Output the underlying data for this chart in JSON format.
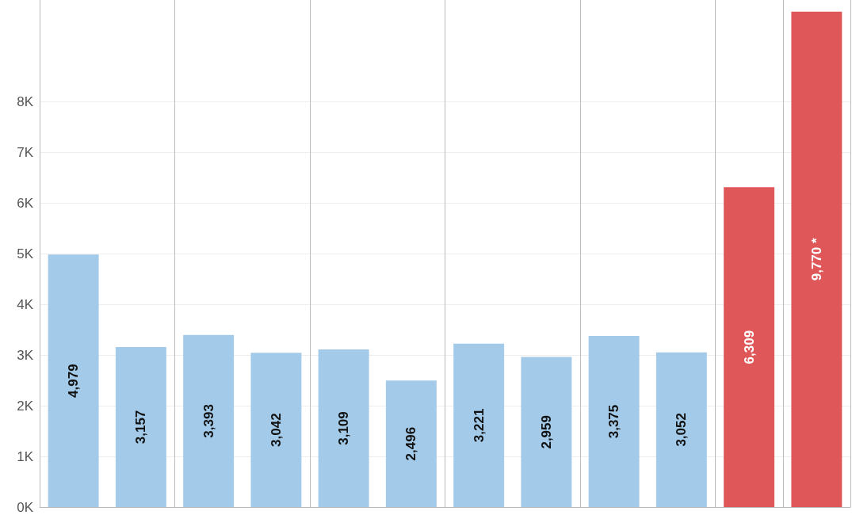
{
  "chart_data": {
    "type": "bar",
    "categories": [
      null,
      null,
      null,
      null,
      null,
      null,
      null,
      null,
      null,
      null,
      null,
      null
    ],
    "values": [
      4979,
      3157,
      3393,
      3042,
      3109,
      2496,
      3221,
      2959,
      3375,
      3052,
      6309,
      9770
    ],
    "colors": [
      "#a3cbe9",
      "#a3cbe9",
      "#a3cbe9",
      "#a3cbe9",
      "#a3cbe9",
      "#a3cbe9",
      "#a3cbe9",
      "#a3cbe9",
      "#a3cbe9",
      "#a3cbe9",
      "#e05759",
      "#e05759"
    ],
    "value_labels": [
      "4,979",
      "3,157",
      "3,393",
      "3,042",
      "3,109",
      "2,496",
      "3,221",
      "2,959",
      "3,375",
      "3,052",
      "6,309",
      "9,770 *"
    ],
    "ylim": [
      0,
      10000
    ],
    "yticks": [
      {
        "value": 0,
        "label": "0K"
      },
      {
        "value": 1000,
        "label": "1K"
      },
      {
        "value": 2000,
        "label": "2K"
      },
      {
        "value": 3000,
        "label": "3K"
      },
      {
        "value": 4000,
        "label": "4K"
      },
      {
        "value": 5000,
        "label": "5K"
      },
      {
        "value": 6000,
        "label": "6K"
      },
      {
        "value": 7000,
        "label": "7K"
      },
      {
        "value": 8000,
        "label": "8K"
      }
    ],
    "grid": true
  }
}
